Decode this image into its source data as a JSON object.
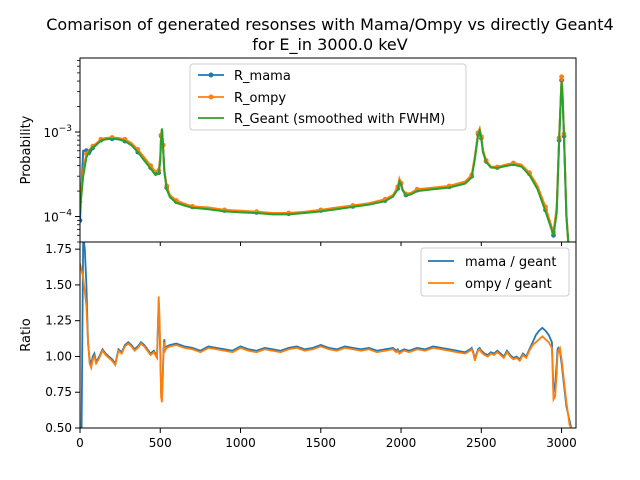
{
  "chart_data": [
    {
      "type": "line",
      "title": "Comarison of generated resonses with Mama/Ompy vs directly Geant4",
      "subtitle": "for E_in 3000.0 keV",
      "xlabel": "",
      "ylabel": "Probability",
      "yscale": "log",
      "xlim": [
        0,
        3090
      ],
      "ylim": [
        5e-05,
        0.0075
      ],
      "ytick_labels": [
        "10^{-4}",
        "10^{-3}"
      ],
      "grid": false,
      "legend": "top-center",
      "x": [
        0,
        20,
        40,
        60,
        80,
        100,
        130,
        160,
        200,
        240,
        280,
        320,
        360,
        400,
        440,
        470,
        490,
        500,
        505,
        511,
        517,
        525,
        540,
        560,
        600,
        650,
        700,
        800,
        900,
        1000,
        1100,
        1200,
        1300,
        1400,
        1500,
        1600,
        1700,
        1800,
        1900,
        1950,
        1980,
        1990,
        2000,
        2010,
        2030,
        2060,
        2100,
        2200,
        2300,
        2400,
        2440,
        2460,
        2480,
        2490,
        2500,
        2510,
        2530,
        2560,
        2600,
        2650,
        2700,
        2750,
        2800,
        2850,
        2900,
        2930,
        2950,
        2970,
        2985,
        2995,
        3000,
        3005,
        3015,
        3030,
        3050
      ],
      "series": [
        {
          "name": "R_mama",
          "color": "#1f77b4",
          "values": [
            9e-05,
            0.0006,
            0.0006,
            0.00055,
            0.00065,
            0.0007,
            0.0008,
            0.00082,
            0.00083,
            0.00082,
            0.00078,
            0.0007,
            0.00058,
            0.00047,
            0.00038,
            0.00032,
            0.00033,
            0.0005,
            0.0009,
            0.0011,
            0.0007,
            0.00035,
            0.00022,
            0.000175,
            0.00015,
            0.00014,
            0.00013,
            0.000125,
            0.000118,
            0.000115,
            0.000112,
            0.000108,
            0.000108,
            0.000112,
            0.000118,
            0.000125,
            0.000132,
            0.00014,
            0.000155,
            0.000175,
            0.000215,
            0.000265,
            0.000245,
            0.000205,
            0.00018,
            0.000185,
            0.000205,
            0.000215,
            0.000225,
            0.00025,
            0.0003,
            0.0005,
            0.00095,
            0.00105,
            0.00085,
            0.0006,
            0.00045,
            0.000385,
            0.00038,
            0.0004,
            0.00042,
            0.0004,
            0.00032,
            0.00022,
            0.00012,
            8e-05,
            6e-05,
            0.00012,
            0.0008,
            0.0025,
            0.0041,
            0.003,
            0.0009,
            0.0001,
            3e-05
          ]
        },
        {
          "name": "R_ompy",
          "color": "#ff7f0e",
          "values": [
            0.00015,
            0.00035,
            0.00055,
            0.00062,
            0.00068,
            0.00073,
            0.00082,
            0.00085,
            0.00086,
            0.00085,
            0.00082,
            0.00074,
            0.00062,
            0.0005,
            0.0004,
            0.00034,
            0.00035,
            0.00052,
            0.00092,
            0.00108,
            0.0007,
            0.00036,
            0.00023,
            0.00018,
            0.000155,
            0.000142,
            0.000132,
            0.000128,
            0.00012,
            0.000117,
            0.000114,
            0.00011,
            0.00011,
            0.000114,
            0.00012,
            0.000128,
            0.000135,
            0.000144,
            0.00016,
            0.00018,
            0.000225,
            0.00028,
            0.00025,
            0.00021,
            0.000185,
            0.00019,
            0.00021,
            0.00022,
            0.00023,
            0.00026,
            0.00031,
            0.00052,
            0.00098,
            0.0011,
            0.00088,
            0.00062,
            0.00046,
            0.00039,
            0.000385,
            0.00041,
            0.00043,
            0.00041,
            0.00033,
            0.00023,
            0.00013,
            8.5e-05,
            6.5e-05,
            0.00013,
            0.00085,
            0.0026,
            0.0045,
            0.0032,
            0.00095,
            0.00011,
            3e-05
          ]
        },
        {
          "name": "R_Geant (smoothed with FWHM)",
          "color": "#2ca02c",
          "values": [
            0.00012,
            0.0003,
            0.0005,
            0.0006,
            0.00066,
            0.0007,
            0.00079,
            0.00082,
            0.00083,
            0.00082,
            0.00078,
            0.0007,
            0.00058,
            0.00046,
            0.00037,
            0.00031,
            0.00032,
            0.00045,
            0.0008,
            0.0011,
            0.0007,
            0.00034,
            0.00021,
            0.00017,
            0.000145,
            0.000135,
            0.000127,
            0.000122,
            0.000115,
            0.000112,
            0.00011,
            0.000106,
            0.000106,
            0.00011,
            0.000115,
            0.000122,
            0.00013,
            0.000138,
            0.000152,
            0.000172,
            0.00021,
            0.00026,
            0.00024,
            0.000205,
            0.000178,
            0.000182,
            0.0002,
            0.00021,
            0.00022,
            0.000245,
            0.00029,
            0.00048,
            0.00092,
            0.00104,
            0.00084,
            0.00058,
            0.00044,
            0.00038,
            0.000375,
            0.000395,
            0.00041,
            0.00039,
            0.00031,
            0.00021,
            0.000115,
            7.8e-05,
            6e-05,
            0.00011,
            0.00075,
            0.0024,
            0.004,
            0.0029,
            0.00088,
            0.0001,
            3e-05
          ]
        }
      ]
    },
    {
      "type": "line",
      "xlabel": "",
      "ylabel": "Ratio",
      "xlim": [
        0,
        3090
      ],
      "ylim": [
        0.5,
        1.8
      ],
      "xticks": [
        0,
        500,
        1000,
        1500,
        2000,
        2500,
        3000
      ],
      "yticks": [
        "0.50",
        "0.75",
        "1.00",
        "1.25",
        "1.50",
        "1.75"
      ],
      "grid": false,
      "legend": "top-right",
      "x": [
        0,
        10,
        20,
        30,
        40,
        50,
        60,
        70,
        80,
        90,
        100,
        110,
        120,
        140,
        160,
        180,
        200,
        220,
        240,
        260,
        280,
        300,
        320,
        340,
        360,
        380,
        400,
        420,
        440,
        460,
        480,
        490,
        495,
        500,
        505,
        510,
        515,
        520,
        525,
        530,
        540,
        560,
        600,
        650,
        700,
        750,
        800,
        850,
        900,
        950,
        1000,
        1050,
        1100,
        1150,
        1200,
        1250,
        1300,
        1350,
        1400,
        1450,
        1500,
        1550,
        1600,
        1650,
        1700,
        1750,
        1800,
        1850,
        1900,
        1950,
        1970,
        1980,
        1990,
        2000,
        2020,
        2050,
        2100,
        2150,
        2200,
        2250,
        2300,
        2350,
        2400,
        2430,
        2440,
        2450,
        2460,
        2470,
        2480,
        2490,
        2500,
        2520,
        2540,
        2560,
        2580,
        2600,
        2620,
        2640,
        2660,
        2680,
        2700,
        2720,
        2740,
        2760,
        2780,
        2800,
        2820,
        2840,
        2860,
        2880,
        2900,
        2920,
        2940,
        2950,
        2960,
        2970,
        2975,
        2980,
        2990,
        3000,
        3010,
        3020,
        3030,
        3040,
        3050,
        3060
      ],
      "series": [
        {
          "name": "mama / geant",
          "color": "#1f77b4",
          "values": [
            0.5,
            0.5,
            1.85,
            1.75,
            1.5,
            1.1,
            0.98,
            0.95,
            1.0,
            1.02,
            0.96,
            0.98,
            1.0,
            1.05,
            1.02,
            1.0,
            0.98,
            0.95,
            1.05,
            1.03,
            1.08,
            1.1,
            1.08,
            1.05,
            1.07,
            1.1,
            1.08,
            1.05,
            1.02,
            1.04,
            1.0,
            1.38,
            1.2,
            1.02,
            0.75,
            0.7,
            0.85,
            1.05,
            1.12,
            1.05,
            1.07,
            1.08,
            1.09,
            1.07,
            1.06,
            1.04,
            1.07,
            1.06,
            1.05,
            1.04,
            1.07,
            1.05,
            1.04,
            1.06,
            1.05,
            1.04,
            1.06,
            1.07,
            1.05,
            1.06,
            1.08,
            1.06,
            1.05,
            1.07,
            1.06,
            1.05,
            1.06,
            1.04,
            1.05,
            1.06,
            1.04,
            1.05,
            1.03,
            1.04,
            1.05,
            1.04,
            1.06,
            1.05,
            1.07,
            1.06,
            1.05,
            1.04,
            1.03,
            1.05,
            1.06,
            1.03,
            0.98,
            1.02,
            1.05,
            1.06,
            1.04,
            1.02,
            1.01,
            1.03,
            1.02,
            1.04,
            1.02,
            1.0,
            1.04,
            1.01,
            0.99,
            1.0,
            0.98,
            1.02,
            1.0,
            1.05,
            1.1,
            1.15,
            1.18,
            1.2,
            1.18,
            1.15,
            1.1,
            0.75,
            0.8,
            0.95,
            1.05,
            1.06,
            1.04,
            0.95,
            0.85,
            0.75,
            0.65,
            0.6,
            0.55,
            0.5
          ]
        },
        {
          "name": "ompy / geant",
          "color": "#ff7f0e",
          "values": [
            1.65,
            1.6,
            1.55,
            1.45,
            1.35,
            1.1,
            0.95,
            0.92,
            0.98,
            1.0,
            0.95,
            0.97,
            0.99,
            1.04,
            1.01,
            0.99,
            0.97,
            0.94,
            1.04,
            1.02,
            1.07,
            1.09,
            1.07,
            1.04,
            1.06,
            1.09,
            1.07,
            1.04,
            1.01,
            1.03,
            0.99,
            1.42,
            1.28,
            1.05,
            0.72,
            0.68,
            0.82,
            1.02,
            1.1,
            1.04,
            1.06,
            1.07,
            1.08,
            1.06,
            1.05,
            1.03,
            1.06,
            1.05,
            1.04,
            1.03,
            1.06,
            1.04,
            1.03,
            1.05,
            1.04,
            1.03,
            1.05,
            1.06,
            1.04,
            1.05,
            1.07,
            1.05,
            1.04,
            1.06,
            1.05,
            1.04,
            1.05,
            1.03,
            1.04,
            1.05,
            1.03,
            1.04,
            1.02,
            1.03,
            1.04,
            1.03,
            1.05,
            1.04,
            1.06,
            1.05,
            1.04,
            1.03,
            1.02,
            1.04,
            1.05,
            1.02,
            0.97,
            1.01,
            1.04,
            1.05,
            1.03,
            1.01,
            1.0,
            1.02,
            1.01,
            1.03,
            1.01,
            0.99,
            1.03,
            1.0,
            0.98,
            0.99,
            0.97,
            1.01,
            0.99,
            1.04,
            1.08,
            1.1,
            1.12,
            1.14,
            1.12,
            1.1,
            1.06,
            0.7,
            0.72,
            0.88,
            1.0,
            1.04,
            1.06,
            0.98,
            0.88,
            0.78,
            0.68,
            0.6,
            0.52,
            0.5
          ]
        }
      ]
    }
  ]
}
